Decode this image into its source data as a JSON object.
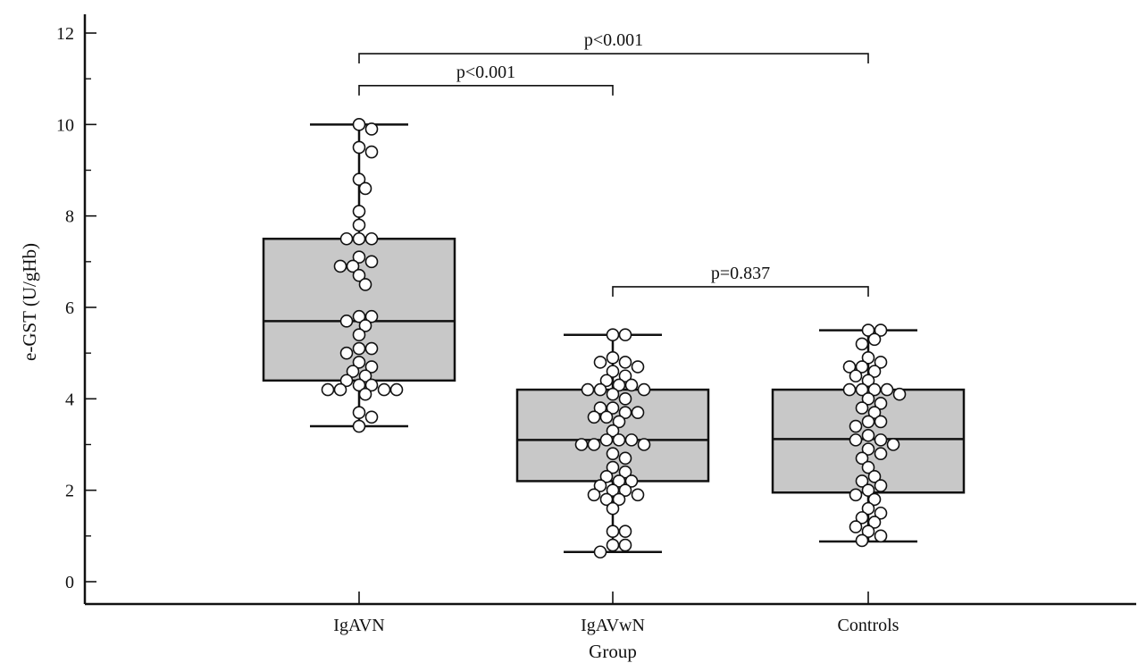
{
  "chart_data": {
    "type": "box",
    "xlabel": "Group",
    "ylabel": "e-GST (U/gHb)",
    "ylim": [
      -0.5,
      12.5
    ],
    "yticks": [
      0,
      2,
      4,
      6,
      8,
      10,
      12
    ],
    "minor_step": 1,
    "categories": [
      "IgAVN",
      "IgAVwN",
      "Controls"
    ],
    "boxes": [
      {
        "name": "IgAVN",
        "min": 3.4,
        "q1": 4.4,
        "median": 5.7,
        "q3": 7.5,
        "max": 10.0,
        "points": [
          10.0,
          9.9,
          9.5,
          9.4,
          8.8,
          8.6,
          8.1,
          7.8,
          7.5,
          7.5,
          7.5,
          7.1,
          7.0,
          6.9,
          6.9,
          6.7,
          6.5,
          5.8,
          5.8,
          5.7,
          5.6,
          5.4,
          5.1,
          5.1,
          5.0,
          4.8,
          4.7,
          4.6,
          4.5,
          4.4,
          4.3,
          4.3,
          4.2,
          4.2,
          4.2,
          4.2,
          4.1,
          3.7,
          3.6,
          3.4
        ]
      },
      {
        "name": "IgAVwN",
        "min": 0.65,
        "q1": 2.2,
        "median": 3.1,
        "q3": 4.2,
        "max": 5.4,
        "points": [
          5.4,
          5.4,
          4.9,
          4.8,
          4.8,
          4.7,
          4.6,
          4.5,
          4.4,
          4.3,
          4.3,
          4.2,
          4.2,
          4.2,
          4.1,
          4.0,
          3.8,
          3.8,
          3.7,
          3.7,
          3.6,
          3.6,
          3.5,
          3.3,
          3.1,
          3.1,
          3.1,
          3.0,
          3.0,
          3.0,
          2.8,
          2.7,
          2.5,
          2.4,
          2.3,
          2.2,
          2.2,
          2.1,
          2.0,
          2.0,
          1.9,
          1.9,
          1.8,
          1.8,
          1.6,
          1.1,
          1.1,
          0.8,
          0.8,
          0.65
        ]
      },
      {
        "name": "Controls",
        "min": 0.88,
        "q1": 1.95,
        "median": 3.12,
        "q3": 4.2,
        "max": 5.5,
        "points": [
          5.5,
          5.5,
          5.3,
          5.2,
          4.9,
          4.8,
          4.7,
          4.7,
          4.6,
          4.5,
          4.4,
          4.2,
          4.2,
          4.2,
          4.2,
          4.1,
          4.0,
          3.9,
          3.8,
          3.7,
          3.5,
          3.5,
          3.4,
          3.2,
          3.1,
          3.1,
          3.0,
          2.9,
          2.8,
          2.7,
          2.5,
          2.3,
          2.2,
          2.1,
          2.0,
          1.9,
          1.8,
          1.6,
          1.5,
          1.4,
          1.3,
          1.2,
          1.1,
          1.0,
          0.9
        ]
      }
    ],
    "comparisons": [
      {
        "from": "IgAVN",
        "to": "IgAVwN",
        "label": "p<0.001",
        "at": 10.85
      },
      {
        "from": "IgAVN",
        "to": "Controls",
        "label": "p<0.001",
        "at": 11.55
      },
      {
        "from": "IgAVwN",
        "to": "Controls",
        "label": "p=0.837",
        "at": 6.45
      }
    ],
    "colors": {
      "box_fill": "#c8c8c8",
      "stroke": "#111111",
      "point_fill": "#ffffff"
    }
  }
}
